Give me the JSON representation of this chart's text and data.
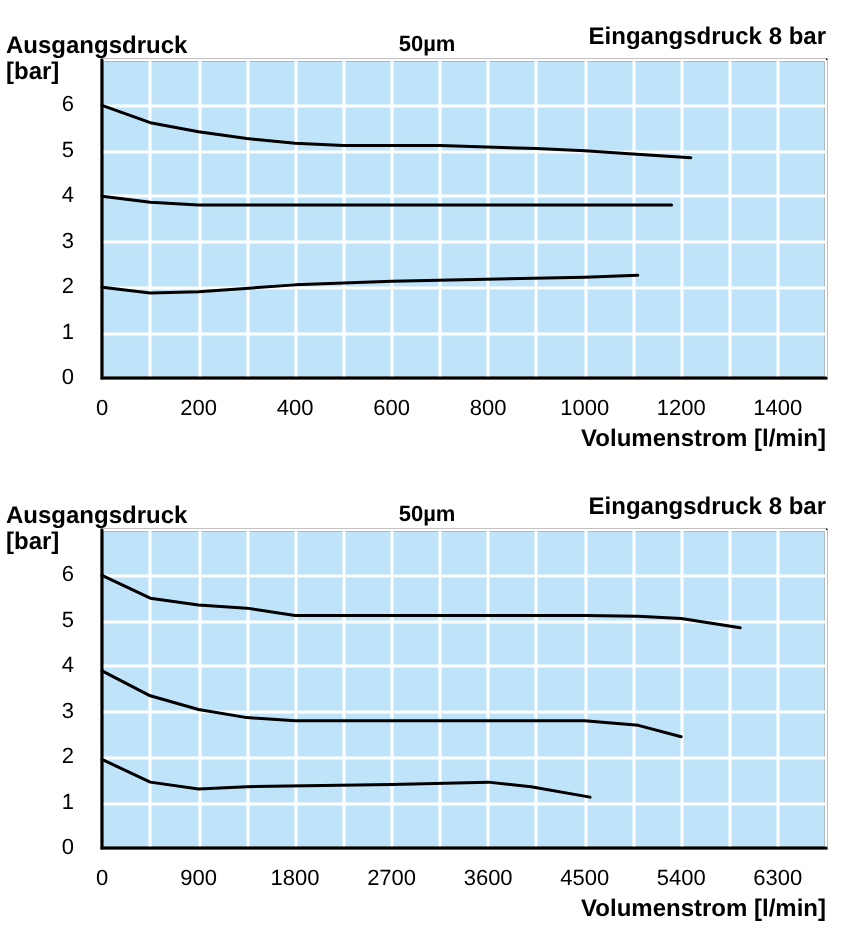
{
  "chart_data": [
    {
      "type": "line",
      "title": "50µm",
      "ylabel": "Ausgangsdruck [bar]",
      "xlabel": "Volumenstrom [l/min]",
      "annotations": [
        "Eingangsdruck 8 bar"
      ],
      "xlim": [
        0,
        1500
      ],
      "xticks": [
        0,
        {
          "value": 100,
          "label": null
        },
        200,
        {
          "value": 300,
          "label": null
        },
        400,
        {
          "value": 500,
          "label": null
        },
        600,
        {
          "value": 700,
          "label": null
        },
        800,
        {
          "value": 900,
          "label": null
        },
        1000,
        {
          "value": 1100,
          "label": null
        },
        1200,
        {
          "value": 1300,
          "label": null
        },
        1400,
        {
          "value": 1500,
          "label": null
        }
      ],
      "ylim": [
        0,
        7
      ],
      "yticks": [
        0,
        1,
        2,
        3,
        4,
        5,
        6,
        {
          "value": 7,
          "label": null
        }
      ],
      "grid": true,
      "marker": "none",
      "line_style": "solid",
      "series": [
        {
          "color": "#000000",
          "x": [
            0,
            100,
            200,
            300,
            400,
            500,
            700,
            900,
            1000,
            1100,
            1220
          ],
          "values": [
            6,
            5.62,
            5.42,
            5.27,
            5.17,
            5.12,
            5.12,
            5.05,
            5.0,
            4.93,
            4.85
          ]
        },
        {
          "color": "#000000",
          "x": [
            0,
            100,
            200,
            400,
            1180
          ],
          "values": [
            4,
            3.87,
            3.81,
            3.81,
            3.81
          ]
        },
        {
          "color": "#000000",
          "x": [
            0,
            100,
            200,
            400,
            600,
            1000,
            1110
          ],
          "values": [
            2,
            1.87,
            1.9,
            2.05,
            2.13,
            2.22,
            2.26
          ]
        }
      ]
    },
    {
      "type": "line",
      "title": "50µm",
      "ylabel": "Ausgangsdruck [bar]",
      "xlabel": "Volumenstrom [l/min]",
      "annotations": [
        "Eingangsdruck 8 bar"
      ],
      "xlim": [
        0,
        6750
      ],
      "xticks": [
        0,
        {
          "value": 450,
          "label": null
        },
        900,
        {
          "value": 1350,
          "label": null
        },
        1800,
        {
          "value": 2250,
          "label": null
        },
        2700,
        {
          "value": 3150,
          "label": null
        },
        3600,
        {
          "value": 4050,
          "label": null
        },
        4500,
        {
          "value": 4950,
          "label": null
        },
        5400,
        {
          "value": 5850,
          "label": null
        },
        6300,
        {
          "value": 6750,
          "label": null
        }
      ],
      "ylim": [
        0,
        7
      ],
      "yticks": [
        0,
        1,
        2,
        3,
        4,
        5,
        6,
        {
          "value": 7,
          "label": null
        }
      ],
      "grid": true,
      "marker": "none",
      "line_style": "solid",
      "series": [
        {
          "color": "#000000",
          "x": [
            0,
            450,
            900,
            1350,
            1800,
            2700,
            4500,
            5000,
            5400,
            5950
          ],
          "values": [
            6,
            5.5,
            5.35,
            5.28,
            5.12,
            5.12,
            5.12,
            5.1,
            5.05,
            4.85
          ]
        },
        {
          "color": "#000000",
          "x": [
            0,
            450,
            900,
            1350,
            1800,
            4500,
            5000,
            5400
          ],
          "values": [
            3.9,
            3.35,
            3.05,
            2.87,
            2.8,
            2.8,
            2.7,
            2.45
          ]
        },
        {
          "color": "#000000",
          "x": [
            0,
            450,
            900,
            1350,
            2700,
            3600,
            4000,
            4550
          ],
          "values": [
            1.95,
            1.45,
            1.3,
            1.35,
            1.4,
            1.45,
            1.35,
            1.12
          ]
        }
      ]
    }
  ]
}
